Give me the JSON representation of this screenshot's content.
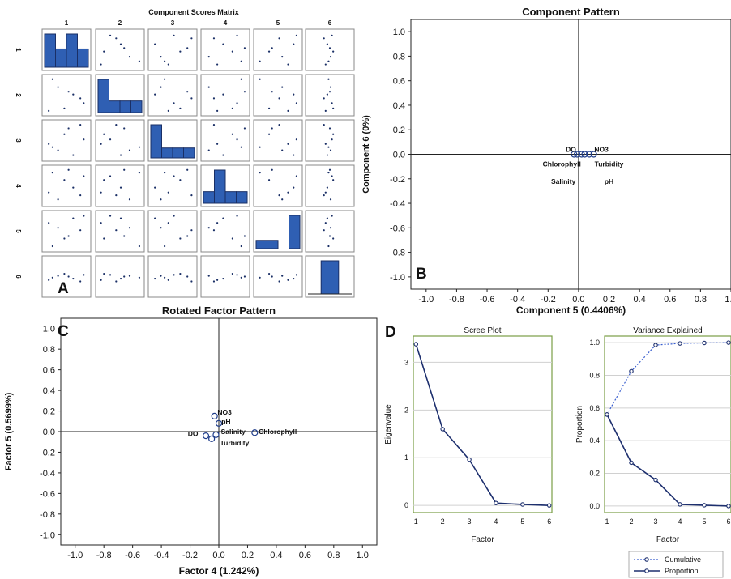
{
  "chart_data": [
    {
      "id": "A",
      "type": "scatter",
      "title": "Component Scores Matrix",
      "panel_label": "A",
      "variables": [
        "1",
        "2",
        "3",
        "4",
        "5",
        "6"
      ],
      "diagonal": "histogram",
      "histograms": [
        {
          "var": "1",
          "heights": [
            1.0,
            0.55,
            1.0,
            0.55
          ]
        },
        {
          "var": "2",
          "heights": [
            1.0,
            0.35,
            0.35,
            0.35
          ]
        },
        {
          "var": "3",
          "heights": [
            1.0,
            0.3,
            0.3,
            0.3
          ]
        },
        {
          "var": "4",
          "heights": [
            0.35,
            1.0,
            0.35,
            0.35
          ]
        },
        {
          "var": "5",
          "heights": [
            0.25,
            0.25,
            0.0,
            1.0
          ]
        },
        {
          "var": "6",
          "heights": [
            1.0
          ]
        }
      ],
      "scores": [
        [
          0.17,
          0.96,
          0.31,
          0.88,
          0.07,
          0.47
        ],
        [
          0.83,
          0.41,
          0.95,
          0.23,
          0.53,
          0.36
        ],
        [
          0.45,
          0.12,
          0.68,
          0.67,
          0.29,
          0.58
        ],
        [
          0.66,
          0.52,
          0.08,
          0.45,
          0.87,
          0.44
        ],
        [
          0.3,
          0.73,
          0.22,
          0.11,
          0.6,
          0.52
        ],
        [
          0.91,
          0.27,
          0.53,
          0.78,
          0.94,
          0.55
        ],
        [
          0.55,
          0.6,
          0.85,
          0.96,
          0.36,
          0.5
        ],
        [
          0.08,
          0.05,
          0.4,
          0.31,
          0.74,
          0.4
        ]
      ]
    },
    {
      "id": "B",
      "type": "scatter",
      "title": "Component Pattern",
      "panel_label": "B",
      "xlabel": "Component 5 (0.4406%)",
      "ylabel": "Component 6 (0%)",
      "xlim": [
        -1.1,
        1.0
      ],
      "ylim": [
        -1.1,
        1.1
      ],
      "xticks": [
        "-1.0",
        "-0.8",
        "-0.6",
        "-0.4",
        "-0.2",
        "0.0",
        "0.2",
        "0.4",
        "0.6",
        "0.8",
        "1.0"
      ],
      "yticks": [
        "-1.0",
        "-0.8",
        "-0.6",
        "-0.4",
        "-0.2",
        "0.0",
        "0.2",
        "0.4",
        "0.6",
        "0.8",
        "1.0"
      ],
      "points": [
        {
          "label": "DO",
          "x": -0.03,
          "y": 0.0
        },
        {
          "label": "NO3",
          "x": 0.07,
          "y": 0.0
        },
        {
          "label": "Chlorophyll",
          "x": -0.01,
          "y": 0.0
        },
        {
          "label": "Turbidity",
          "x": 0.04,
          "y": 0.0
        },
        {
          "label": "Salinity",
          "x": 0.02,
          "y": 0.0
        },
        {
          "label": "pH",
          "x": 0.1,
          "y": 0.0
        }
      ],
      "point_labels": [
        {
          "text": "DO",
          "tx": -0.05,
          "ty": 0.04
        },
        {
          "text": "NO3",
          "tx": 0.15,
          "ty": 0.04
        },
        {
          "text": "Chlorophyll",
          "tx": -0.11,
          "ty": -0.08
        },
        {
          "text": "Turbidity",
          "tx": 0.2,
          "ty": -0.08
        },
        {
          "text": "Salinity",
          "tx": -0.1,
          "ty": -0.22
        },
        {
          "text": "pH",
          "tx": 0.2,
          "ty": -0.22
        }
      ]
    },
    {
      "id": "C",
      "type": "scatter",
      "title": "Rotated Factor Pattern",
      "panel_label": "C",
      "xlabel": "Factor 4 (1.242%)",
      "ylabel": "Factor 5 (0.5699%)",
      "xlim": [
        -1.1,
        1.1
      ],
      "ylim": [
        -1.1,
        1.1
      ],
      "xticks": [
        "-1.0",
        "-0.8",
        "-0.6",
        "-0.4",
        "-0.2",
        "0.0",
        "0.2",
        "0.4",
        "0.6",
        "0.8",
        "1.0"
      ],
      "yticks": [
        "-1.0",
        "-0.8",
        "-0.6",
        "-0.4",
        "-0.2",
        "0.0",
        "0.2",
        "0.4",
        "0.6",
        "0.8",
        "1.0"
      ],
      "points": [
        {
          "label": "NO3",
          "x": -0.03,
          "y": 0.15
        },
        {
          "label": "pH",
          "x": 0.0,
          "y": 0.08
        },
        {
          "label": "Salinity",
          "x": -0.02,
          "y": -0.03
        },
        {
          "label": "Chlorophyll",
          "x": 0.25,
          "y": -0.01
        },
        {
          "label": "DO",
          "x": -0.09,
          "y": -0.04
        },
        {
          "label": "Turbidity",
          "x": -0.05,
          "y": -0.07
        }
      ],
      "point_labels": [
        {
          "text": "NO3",
          "tx": 0.04,
          "ty": 0.19
        },
        {
          "text": "pH",
          "tx": 0.05,
          "ty": 0.1
        },
        {
          "text": "Salinity",
          "tx": 0.1,
          "ty": 0.0
        },
        {
          "text": "Chlorophyll",
          "tx": 0.41,
          "ty": 0.0
        },
        {
          "text": "DO",
          "tx": -0.18,
          "ty": -0.02
        },
        {
          "text": "Turbidity",
          "tx": 0.11,
          "ty": -0.11
        }
      ]
    },
    {
      "id": "D1",
      "type": "line",
      "title": "Scree Plot",
      "panel_label": "D",
      "xlabel": "Factor",
      "ylabel": "Eigenvalue",
      "x": [
        1,
        2,
        3,
        4,
        5,
        6
      ],
      "values": [
        3.38,
        1.6,
        0.96,
        0.05,
        0.02,
        0.0
      ],
      "ylim": [
        -0.15,
        3.55
      ],
      "yticks": [
        "0",
        "1",
        "2",
        "3"
      ],
      "xticks": [
        "1",
        "2",
        "3",
        "4",
        "5",
        "6"
      ],
      "grid": true
    },
    {
      "id": "D2",
      "type": "line",
      "title": "Variance Explained",
      "xlabel": "Factor",
      "ylabel": "Proportion",
      "x": [
        1,
        2,
        3,
        4,
        5,
        6
      ],
      "ylim": [
        -0.04,
        1.04
      ],
      "yticks": [
        "0.0",
        "0.2",
        "0.4",
        "0.6",
        "0.8",
        "1.0"
      ],
      "xticks": [
        "1",
        "2",
        "3",
        "4",
        "5",
        "6"
      ],
      "grid": true,
      "legend_position": "bottom",
      "series": [
        {
          "name": "Cumulative",
          "values": [
            0.56,
            0.825,
            0.985,
            0.995,
            0.998,
            1.0
          ],
          "style": "dotted"
        },
        {
          "name": "Proportion",
          "values": [
            0.56,
            0.265,
            0.16,
            0.01,
            0.005,
            0.0
          ],
          "style": "solid"
        }
      ]
    }
  ]
}
